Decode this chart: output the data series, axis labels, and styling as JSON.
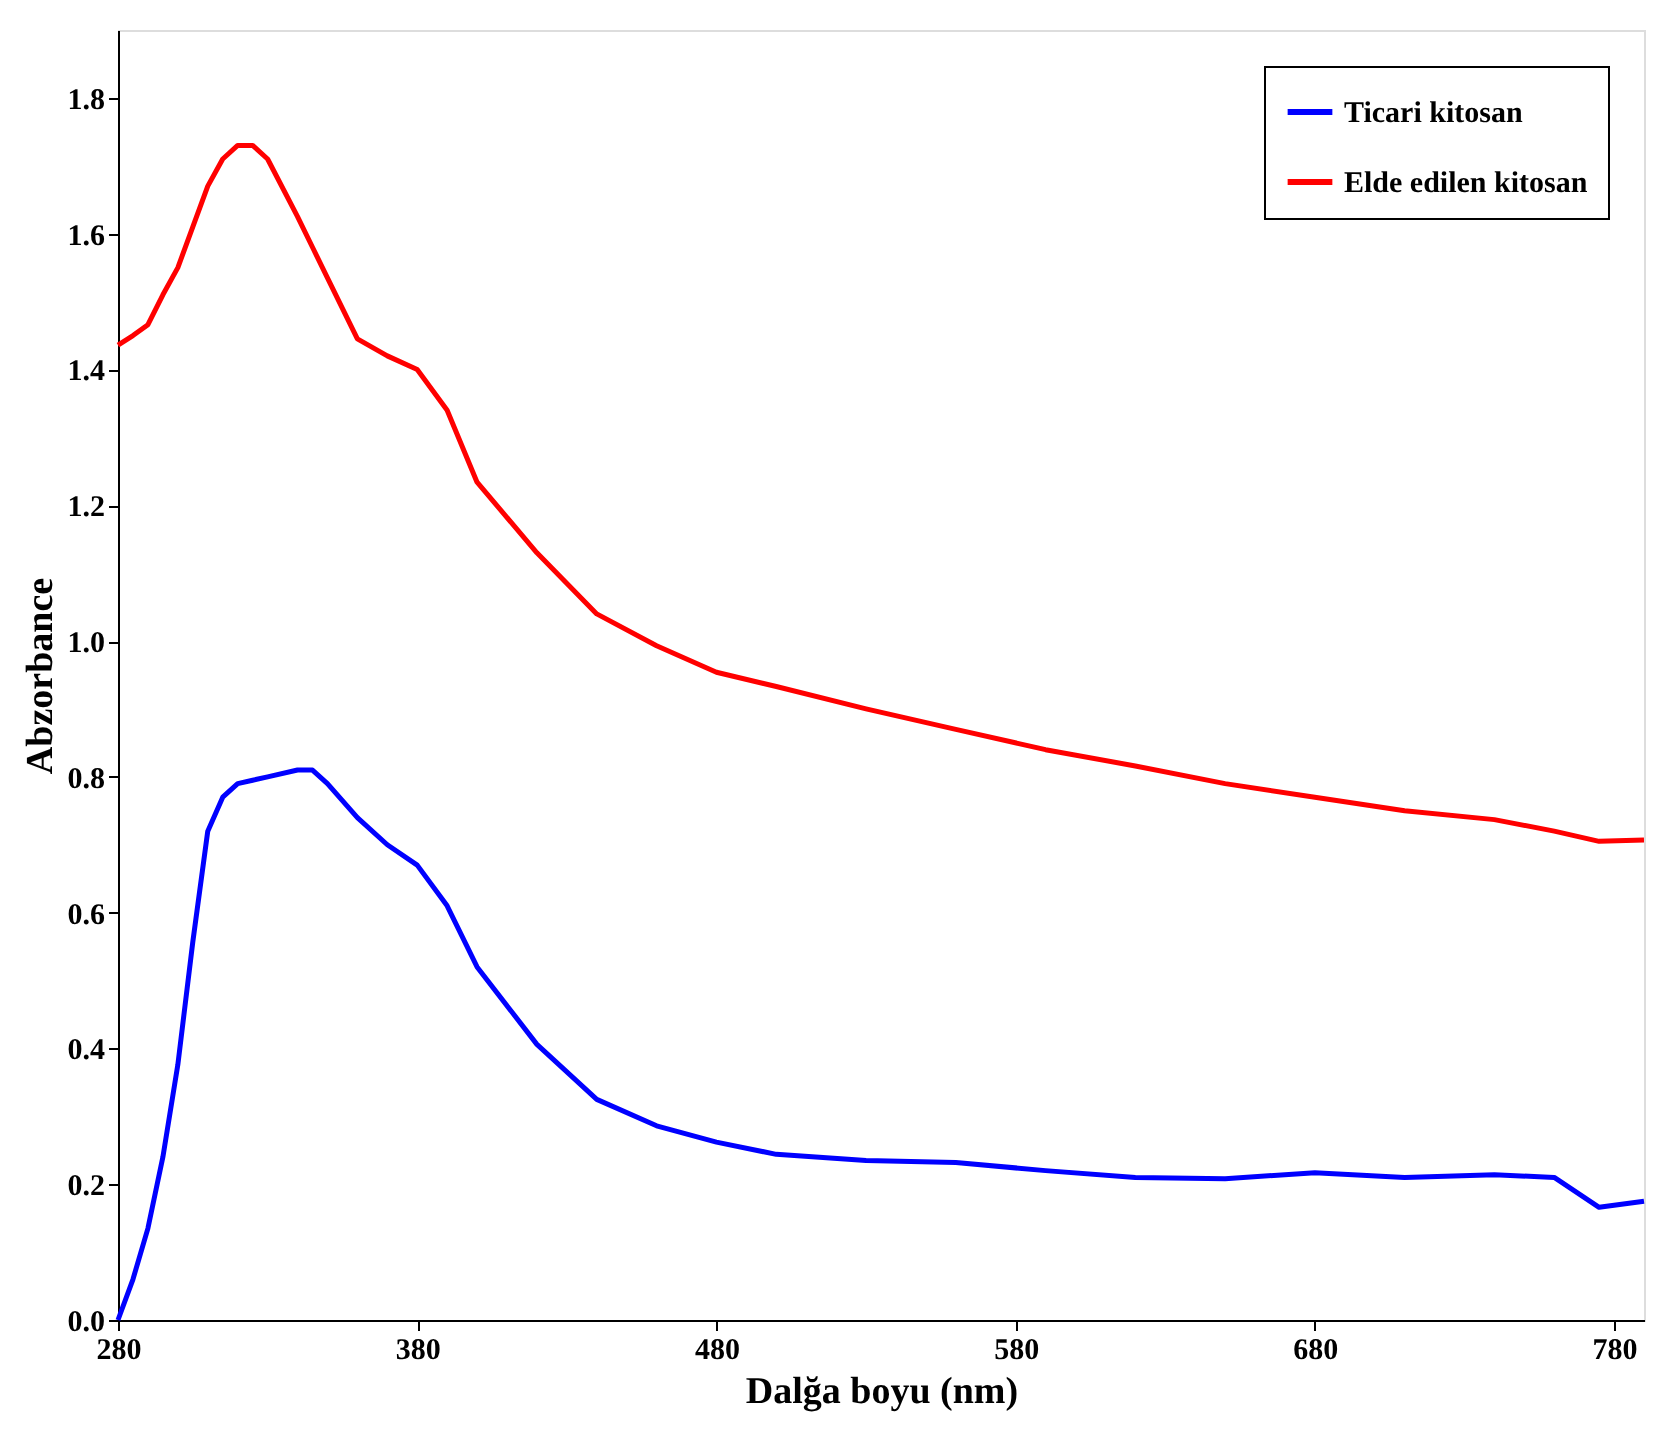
{
  "chart_data": {
    "type": "line",
    "xlabel": "Dalğa boyu (nm)",
    "ylabel": "Abzorbance",
    "xlim": [
      280,
      790
    ],
    "xticks": [
      280,
      380,
      480,
      580,
      680,
      780
    ],
    "ylim": [
      0,
      1.9
    ],
    "yticks": [
      {
        "value": 0,
        "label": "0.0"
      },
      {
        "value": 0.2,
        "label": "0.2"
      },
      {
        "value": 0.4,
        "label": "0.4"
      },
      {
        "value": 0.6,
        "label": "0.6"
      },
      {
        "value": 0.8,
        "label": "0.8"
      },
      {
        "value": 1.0,
        "label": "1.0"
      },
      {
        "value": 1.2,
        "label": "1.2"
      },
      {
        "value": 1.4,
        "label": "1.4"
      },
      {
        "value": 1.6,
        "label": "1.6"
      },
      {
        "value": 1.8,
        "label": "1.8"
      }
    ],
    "grid": false,
    "legend": "top right",
    "marker": "none",
    "line_style": "solid",
    "x": [
      280,
      285,
      290,
      295,
      300,
      305,
      310,
      315,
      320,
      325,
      330,
      340,
      345,
      350,
      360,
      370,
      380,
      390,
      400,
      420,
      440,
      460,
      480,
      500,
      530,
      560,
      590,
      620,
      650,
      680,
      710,
      740,
      760,
      775,
      790
    ],
    "series": [
      {
        "name": "Ticari kitosan",
        "color": "#0000ff",
        "values": [
          0,
          0.06,
          0.135,
          0.24,
          0.376,
          0.557,
          0.72,
          0.77,
          0.79,
          0.795,
          0.8,
          0.81,
          0.81,
          0.79,
          0.74,
          0.7,
          0.67,
          0.61,
          0.52,
          0.406,
          0.325,
          0.286,
          0.262,
          0.244,
          0.235,
          0.232,
          0.22,
          0.21,
          0.208,
          0.217,
          0.21,
          0.214,
          0.21,
          0.166,
          0.175
        ]
      },
      {
        "name": "Elde edilen kitosan",
        "color": "#ff0000",
        "values": [
          1.436,
          1.45,
          1.466,
          1.51,
          1.55,
          1.61,
          1.67,
          1.71,
          1.73,
          1.73,
          1.71,
          1.625,
          1.58,
          1.535,
          1.445,
          1.42,
          1.4,
          1.34,
          1.234,
          1.13,
          1.04,
          0.993,
          0.954,
          0.933,
          0.9,
          0.87,
          0.84,
          0.816,
          0.79,
          0.77,
          0.75,
          0.737,
          0.72,
          0.705,
          0.707
        ]
      }
    ]
  }
}
